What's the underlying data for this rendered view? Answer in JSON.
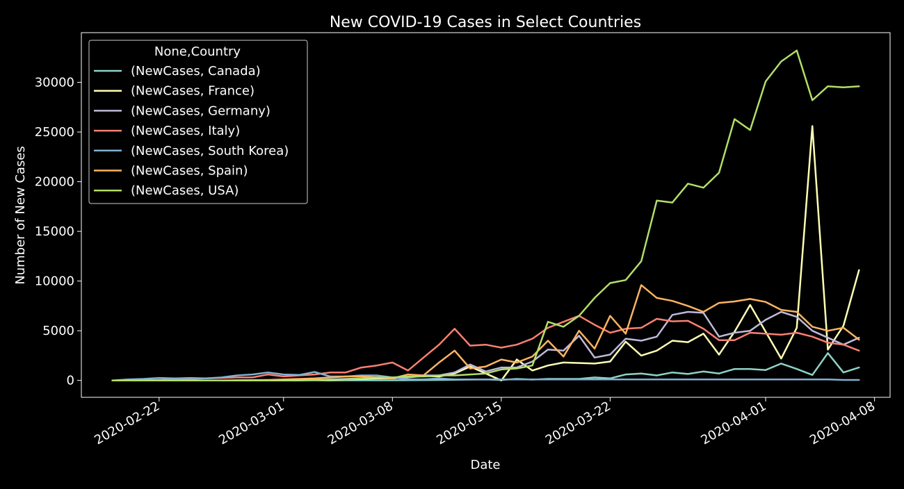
{
  "chart_data": {
    "type": "line",
    "title": "New COVID-19 Cases in Select Countries",
    "xlabel": "Date",
    "ylabel": "Number of New Cases",
    "x_start": "2020-02-19",
    "x_end": "2020-04-07",
    "xlim": [
      "2020-02-17",
      "2020-04-09"
    ],
    "ylim": [
      -1700,
      35000
    ],
    "xticks": [
      "2020-02-22",
      "2020-03-01",
      "2020-03-08",
      "2020-03-15",
      "2020-03-22",
      "2020-04-01",
      "2020-04-08"
    ],
    "yticks": [
      0,
      5000,
      10000,
      15000,
      20000,
      25000,
      30000
    ],
    "grid": false,
    "legend": {
      "title": "None,Country",
      "placement": "top-left"
    },
    "series": [
      {
        "name": "(NewCases, Canada)",
        "color": "#8dd3c7",
        "values": [
          0,
          0,
          0,
          0,
          0,
          0,
          0,
          0,
          0,
          0,
          0,
          0,
          0,
          10,
          0,
          10,
          10,
          10,
          10,
          20,
          30,
          50,
          60,
          80,
          100,
          50,
          150,
          80,
          150,
          150,
          150,
          300,
          200,
          600,
          700,
          500,
          800,
          650,
          900,
          700,
          1150,
          1150,
          1050,
          1700,
          1150,
          550,
          2750,
          800,
          1300
        ]
      },
      {
        "name": "(NewCases, France)",
        "color": "#ffffb3",
        "values": [
          0,
          0,
          0,
          0,
          0,
          0,
          0,
          0,
          0,
          0,
          10,
          10,
          20,
          40,
          50,
          100,
          150,
          200,
          200,
          300,
          450,
          400,
          700,
          1400,
          700,
          0,
          2100,
          1000,
          1500,
          1800,
          1750,
          1700,
          1900,
          3900,
          2500,
          3000,
          4000,
          3850,
          4700,
          2600,
          4900,
          7600,
          4900,
          2200,
          5300,
          25600,
          3100,
          5500,
          11100
        ]
      },
      {
        "name": "(NewCases, Germany)",
        "color": "#bebada",
        "values": [
          0,
          0,
          0,
          0,
          0,
          0,
          0,
          0,
          0,
          0,
          20,
          20,
          30,
          40,
          100,
          150,
          200,
          300,
          200,
          300,
          500,
          500,
          800,
          1600,
          900,
          1300,
          1300,
          1900,
          3100,
          3000,
          4500,
          2300,
          2600,
          4200,
          4000,
          4400,
          6600,
          6900,
          6800,
          4400,
          4800,
          5000,
          6100,
          6900,
          6400,
          5000,
          4300,
          3600,
          4300
        ]
      },
      {
        "name": "(NewCases, Italy)",
        "color": "#fb8072",
        "values": [
          0,
          0,
          20,
          50,
          100,
          150,
          200,
          250,
          300,
          300,
          600,
          400,
          500,
          600,
          800,
          800,
          1300,
          1500,
          1800,
          1000,
          2300,
          3600,
          5200,
          3500,
          3600,
          3300,
          3600,
          4200,
          5300,
          5900,
          6500,
          5600,
          4800,
          5200,
          5300,
          6200,
          5950,
          6000,
          5200,
          4050,
          4050,
          4800,
          4700,
          4600,
          4800,
          4400,
          3800,
          3600,
          3000
        ]
      },
      {
        "name": "(NewCases, South Korea)",
        "color": "#80b1d3",
        "values": [
          0,
          100,
          150,
          250,
          200,
          250,
          200,
          300,
          500,
          600,
          800,
          600,
          550,
          850,
          400,
          400,
          500,
          500,
          300,
          100,
          100,
          200,
          100,
          100,
          100,
          100,
          100,
          100,
          100,
          100,
          100,
          100,
          100,
          100,
          100,
          100,
          100,
          100,
          100,
          100,
          100,
          100,
          100,
          100,
          100,
          100,
          100,
          50,
          50
        ]
      },
      {
        "name": "(NewCases, Spain)",
        "color": "#fdb462",
        "values": [
          0,
          0,
          0,
          0,
          0,
          0,
          0,
          0,
          20,
          30,
          50,
          100,
          150,
          200,
          300,
          400,
          400,
          300,
          200,
          600,
          500,
          1800,
          3000,
          1200,
          1400,
          2100,
          1800,
          2400,
          4000,
          2400,
          5000,
          3200,
          6500,
          4700,
          9600,
          8300,
          8000,
          7500,
          6900,
          7800,
          7950,
          8200,
          7900,
          7100,
          6900,
          5400,
          5000,
          5300,
          4100
        ]
      },
      {
        "name": "(NewCases, USA)",
        "color": "#b3de69",
        "values": [
          0,
          0,
          0,
          0,
          0,
          0,
          0,
          0,
          0,
          0,
          10,
          20,
          30,
          50,
          70,
          100,
          200,
          300,
          300,
          400,
          400,
          500,
          500,
          600,
          700,
          1100,
          1200,
          1500,
          5900,
          5400,
          6500,
          8300,
          9800,
          10100,
          12000,
          18100,
          17900,
          19800,
          19400,
          20900,
          26300,
          25200,
          30100,
          32100,
          33200,
          28200,
          29600,
          29500,
          29600
        ]
      }
    ]
  }
}
